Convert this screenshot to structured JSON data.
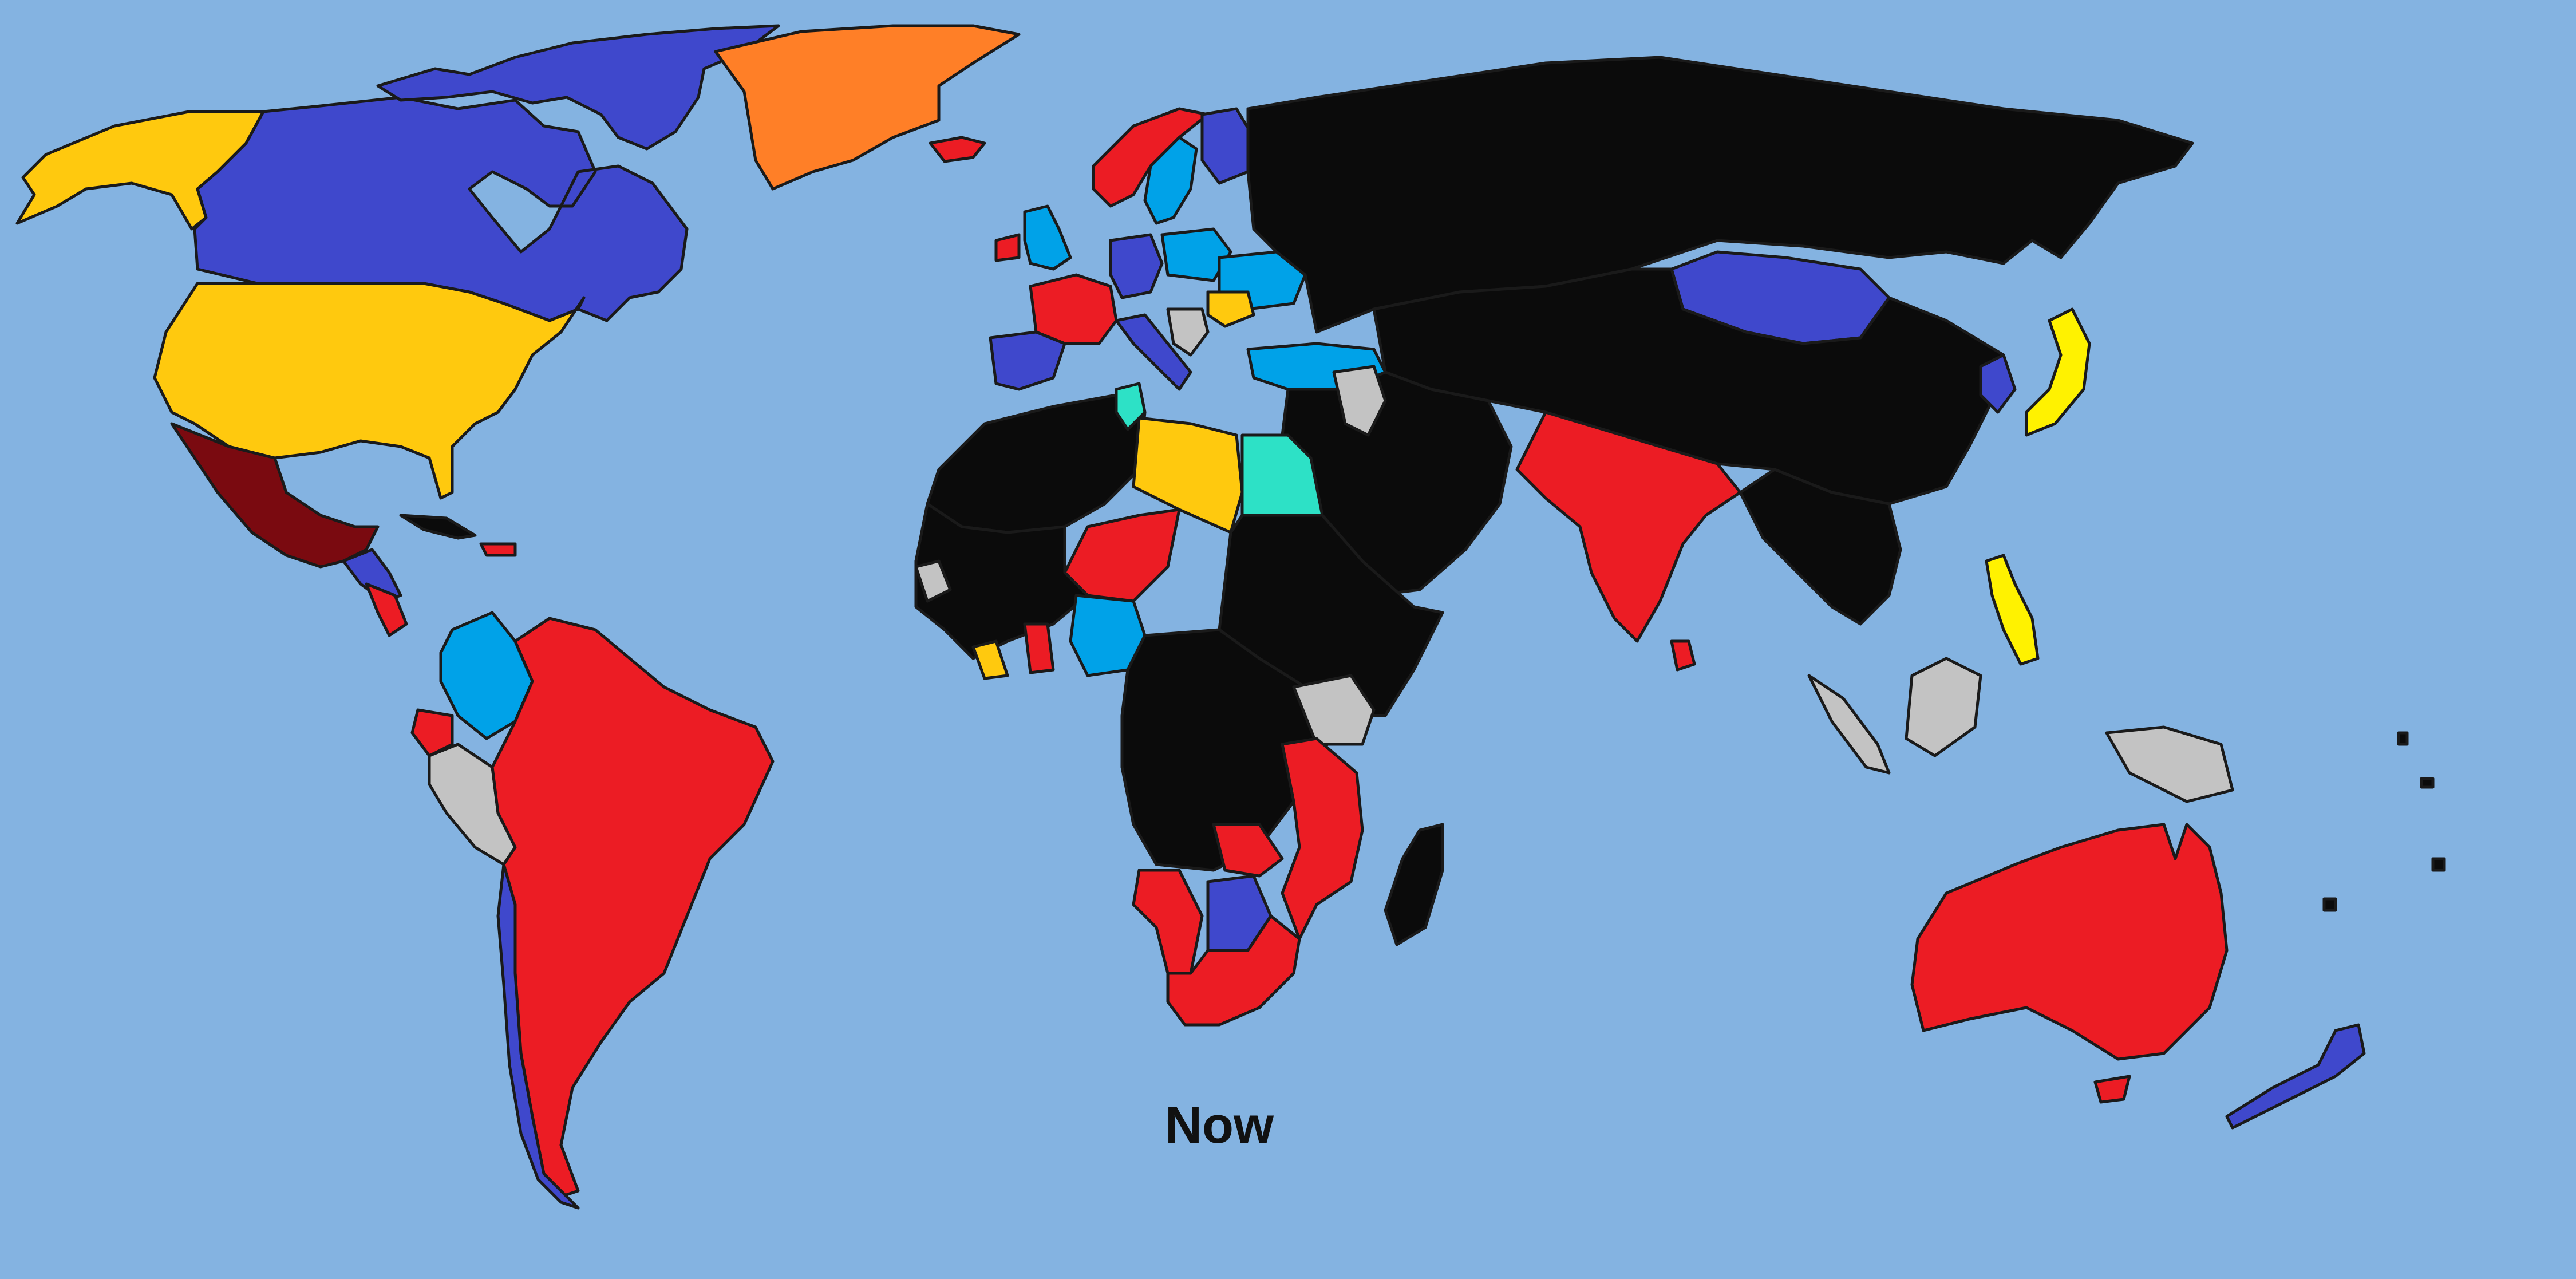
{
  "caption": "Now",
  "colors": {
    "ocean": "#84b3e1",
    "red": "#ec1c24",
    "yellow": "#ffc90e",
    "bright_yellow": "#fff200",
    "blue": "#3f48cc",
    "light_blue": "#00a2e8",
    "orange": "#ff7f27",
    "black": "#0b0b0b",
    "maroon": "#7a0a10",
    "turquoise": "#2de1c6",
    "light_gray": "#c3c3c3",
    "dark_gray": "#7f7f7f"
  }
}
